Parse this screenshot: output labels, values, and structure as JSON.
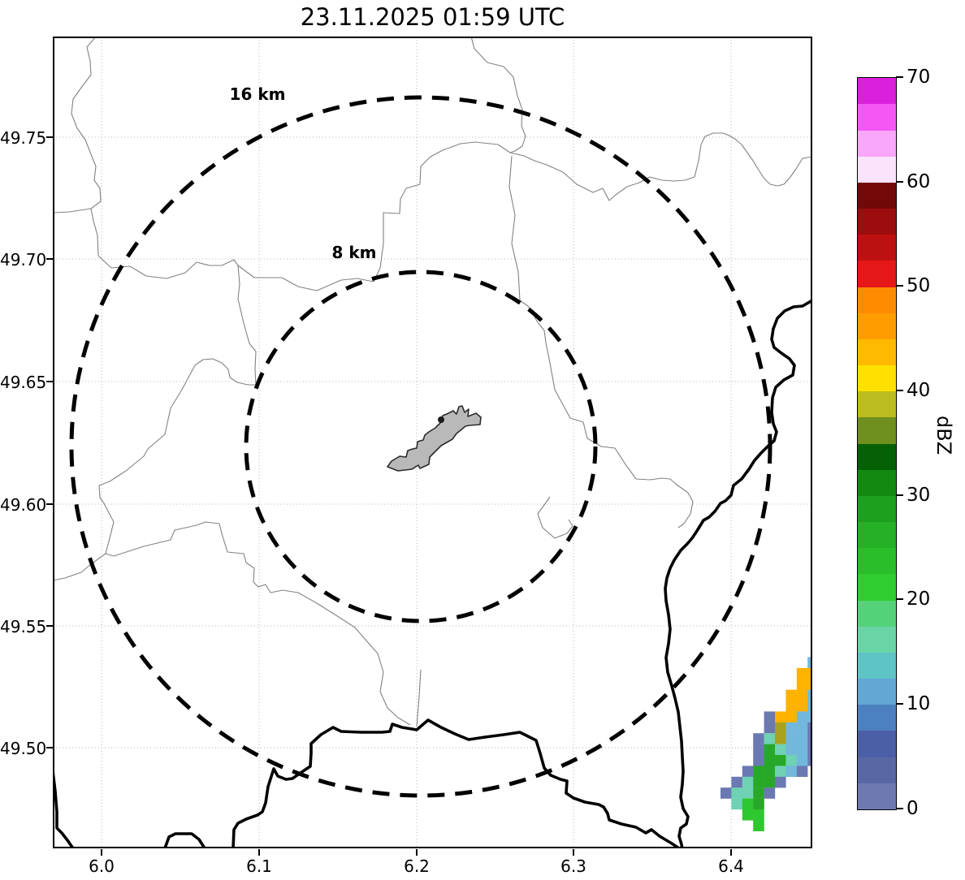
{
  "title": "23.11.2025 01:59 UTC",
  "axes": {
    "x_ticks": [
      "6.0",
      "6.1",
      "6.2",
      "6.3",
      "6.4"
    ],
    "y_ticks": [
      "49.75",
      "49.70",
      "49.65",
      "49.60",
      "49.55",
      "49.50"
    ]
  },
  "range_rings": {
    "outer_label": "16 km",
    "inner_label": "8 km"
  },
  "colorbar": {
    "label": "dBZ",
    "ticks": [
      "0",
      "10",
      "20",
      "30",
      "40",
      "50",
      "60",
      "70"
    ],
    "segments": [
      "#6d79b0",
      "#5a67a5",
      "#4b5fa6",
      "#4d80c0",
      "#61a8d4",
      "#5ec4c6",
      "#69d4a6",
      "#54d279",
      "#2fcd30",
      "#2abf2a",
      "#25b025",
      "#1da01d",
      "#128a12",
      "#056105",
      "#6f8f1e",
      "#bcbc1e",
      "#ffe000",
      "#ffba00",
      "#ff9d00",
      "#ff8c00",
      "#e51717",
      "#bd1111",
      "#9c0d0d",
      "#730808",
      "#fce3fc",
      "#f9a8f9",
      "#f557f5",
      "#dc1fdc"
    ]
  },
  "chart_data": {
    "type": "heatmap",
    "title": "23.11.2025 01:59 UTC",
    "xlabel": "",
    "ylabel": "",
    "x_ticks": [
      6.0,
      6.1,
      6.2,
      6.3,
      6.4
    ],
    "y_ticks": [
      49.75,
      49.7,
      49.65,
      49.6,
      49.55,
      49.5
    ],
    "x_range": [
      5.969,
      6.452
    ],
    "y_range": [
      49.458,
      49.792
    ],
    "grid": true,
    "colorbar_label": "dBZ",
    "colorbar_range": [
      0,
      70
    ],
    "colorbar_step": 2.5,
    "range_rings": {
      "center_lon": 6.204,
      "center_lat": 49.623,
      "radii_km": [
        8,
        16
      ],
      "labels": [
        "8 km",
        "16 km"
      ]
    },
    "palette": {
      "s": "#6b79b2",
      "b": "#72b8dc",
      "t": "#6fd2b4",
      "g": "#28a828",
      "G": "#2fc72f",
      "o": "#ffb300",
      "v": "#a8a21e"
    },
    "palette_dbz": {
      "s": 2.5,
      "b": 11,
      "t": 16,
      "g": 28,
      "G": 21,
      "o": 43,
      "v": 39
    },
    "cells": [
      [
        8,
        1,
        "b"
      ],
      [
        7,
        2,
        "o"
      ],
      [
        8,
        2,
        "o"
      ],
      [
        7,
        3,
        "o"
      ],
      [
        8,
        3,
        "o"
      ],
      [
        6,
        4,
        "o"
      ],
      [
        7,
        4,
        "o"
      ],
      [
        8,
        4,
        "b"
      ],
      [
        6,
        5,
        "o"
      ],
      [
        7,
        5,
        "o"
      ],
      [
        8,
        5,
        "b"
      ],
      [
        4,
        6,
        "s"
      ],
      [
        5,
        6,
        "o"
      ],
      [
        6,
        6,
        "o"
      ],
      [
        7,
        6,
        "b"
      ],
      [
        8,
        6,
        "b"
      ],
      [
        4,
        7,
        "s"
      ],
      [
        5,
        7,
        "v"
      ],
      [
        6,
        7,
        "b"
      ],
      [
        7,
        7,
        "b"
      ],
      [
        8,
        7,
        "s"
      ],
      [
        3,
        8,
        "s"
      ],
      [
        4,
        8,
        "t"
      ],
      [
        5,
        8,
        "v"
      ],
      [
        6,
        8,
        "b"
      ],
      [
        7,
        8,
        "b"
      ],
      [
        8,
        8,
        "s"
      ],
      [
        3,
        9,
        "s"
      ],
      [
        4,
        9,
        "g"
      ],
      [
        5,
        9,
        "t"
      ],
      [
        6,
        9,
        "b"
      ],
      [
        7,
        9,
        "b"
      ],
      [
        8,
        9,
        "s"
      ],
      [
        3,
        10,
        "s"
      ],
      [
        4,
        10,
        "g"
      ],
      [
        5,
        10,
        "g"
      ],
      [
        6,
        10,
        "t"
      ],
      [
        7,
        10,
        "b"
      ],
      [
        8,
        10,
        "s"
      ],
      [
        2,
        11,
        "s"
      ],
      [
        3,
        11,
        "g"
      ],
      [
        4,
        11,
        "g"
      ],
      [
        5,
        11,
        "t"
      ],
      [
        6,
        11,
        "b"
      ],
      [
        7,
        11,
        "s"
      ],
      [
        1,
        12,
        "s"
      ],
      [
        2,
        12,
        "t"
      ],
      [
        3,
        12,
        "g"
      ],
      [
        4,
        12,
        "g"
      ],
      [
        5,
        12,
        "s"
      ],
      [
        0,
        13,
        "s"
      ],
      [
        1,
        13,
        "t"
      ],
      [
        2,
        13,
        "t"
      ],
      [
        3,
        13,
        "g"
      ],
      [
        4,
        13,
        "s"
      ],
      [
        1,
        14,
        "t"
      ],
      [
        2,
        14,
        "G"
      ],
      [
        3,
        14,
        "g"
      ],
      [
        2,
        15,
        "G"
      ],
      [
        3,
        15,
        "G"
      ],
      [
        3,
        16,
        "G"
      ]
    ]
  }
}
